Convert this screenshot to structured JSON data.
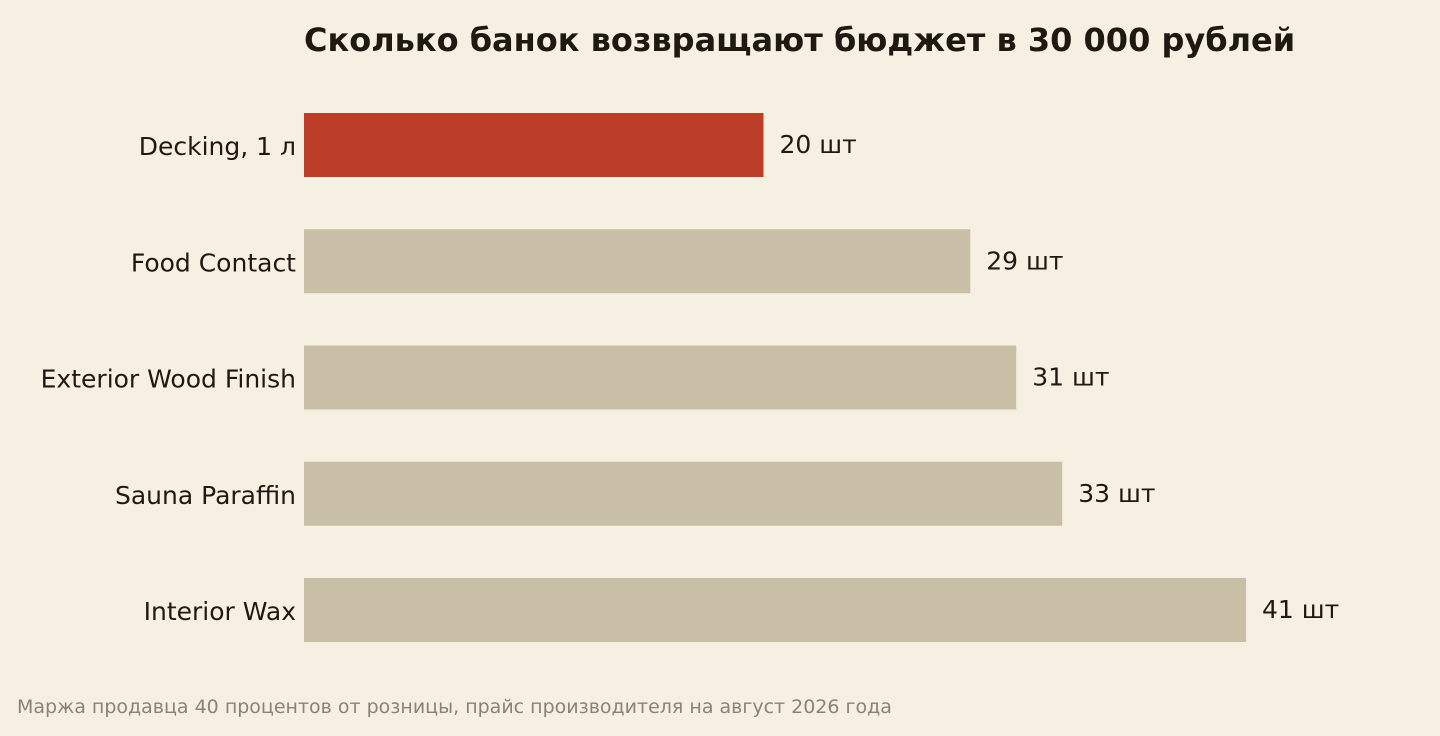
{
  "chart_data": {
    "type": "bar",
    "orientation": "horizontal",
    "title": "Сколько банок возвращают бюджет в 30 000 рублей",
    "categories": [
      "Decking, 1 л",
      "Food Contact",
      "Exterior Wood Finish",
      "Sauna Paraffin",
      "Interior Wax"
    ],
    "values": [
      20,
      29,
      31,
      33,
      41
    ],
    "value_labels": [
      "20 шт",
      "29 шт",
      "31 шт",
      "33 шт",
      "41 шт"
    ],
    "highlight_index": 0,
    "xlim": [
      0,
      41
    ],
    "grid": false,
    "legend": "none"
  },
  "colors": {
    "background": "#f6f0e3",
    "highlight_bar": "#bc3d28",
    "default_bar": "#c9bfa6",
    "text": "#1e1a12",
    "footnote": "#8a8275"
  },
  "footnote": "Маржа продавца 40 процентов от розницы, прайс производителя на август 2026 года"
}
